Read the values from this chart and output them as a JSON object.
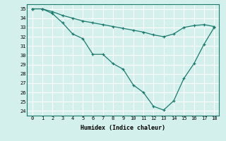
{
  "line1_x": [
    0,
    1,
    2,
    3,
    4,
    5,
    6,
    7,
    8,
    9,
    10,
    11,
    12,
    13,
    14,
    15,
    16,
    17,
    18
  ],
  "line1_y": [
    35.0,
    35.0,
    34.5,
    33.5,
    32.3,
    31.8,
    30.1,
    30.1,
    29.1,
    28.5,
    26.8,
    26.0,
    24.5,
    24.1,
    25.1,
    27.5,
    29.1,
    31.2,
    33.0
  ],
  "line2_x": [
    0,
    1,
    2,
    3,
    4,
    5,
    6,
    7,
    8,
    9,
    10,
    11,
    12,
    13,
    14,
    15,
    16,
    17,
    18
  ],
  "line2_y": [
    35.0,
    35.0,
    34.7,
    34.3,
    34.0,
    33.7,
    33.5,
    33.3,
    33.1,
    32.9,
    32.7,
    32.5,
    32.2,
    32.0,
    32.3,
    33.0,
    33.2,
    33.3,
    33.1
  ],
  "line_color": "#1a7a6e",
  "bg_color": "#d4f0ec",
  "grid_color": "#ffffff",
  "xlabel": "Humidex (Indice chaleur)",
  "ylim": [
    23.5,
    35.5
  ],
  "xlim": [
    -0.5,
    18.5
  ],
  "yticks": [
    24,
    25,
    26,
    27,
    28,
    29,
    30,
    31,
    32,
    33,
    34,
    35
  ],
  "xticks": [
    0,
    1,
    2,
    3,
    4,
    5,
    6,
    7,
    8,
    9,
    10,
    11,
    12,
    13,
    14,
    15,
    16,
    17,
    18
  ]
}
